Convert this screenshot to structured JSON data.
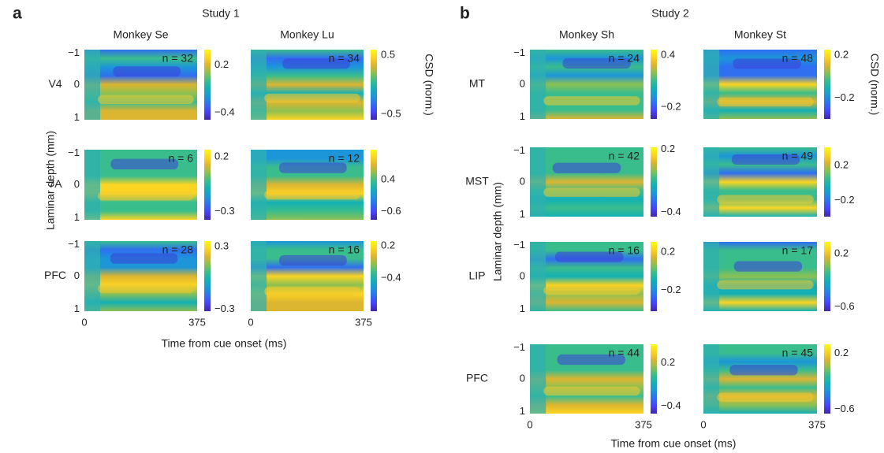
{
  "figure": {
    "panels": [
      {
        "label": "a",
        "title": "Study 1",
        "columns": [
          "Monkey Se",
          "Monkey Lu"
        ],
        "rows": [
          {
            "area": "V4",
            "cells": [
              {
                "n": "n = 32",
                "colorbar": [
                  "0.2",
                  "−0.4"
                ]
              },
              {
                "n": "n = 34",
                "colorbar": [
                  "0.5",
                  "−0.5"
                ]
              }
            ]
          },
          {
            "area": "7A",
            "cells": [
              {
                "n": "n = 6",
                "colorbar": [
                  "0.2",
                  "−0.3"
                ]
              },
              {
                "n": "n = 12",
                "colorbar": [
                  "0.4",
                  "−0.6"
                ]
              }
            ]
          },
          {
            "area": "PFC",
            "cells": [
              {
                "n": "n = 28",
                "colorbar": [
                  "0.3",
                  "−0.3"
                ]
              },
              {
                "n": "n = 16",
                "colorbar": [
                  "0.2",
                  "−0.4"
                ]
              }
            ]
          }
        ],
        "y_axis_label": "Laminar depth (mm)",
        "y_ticks": [
          "−1",
          "0",
          "1"
        ],
        "x_ticks": [
          "0",
          "375"
        ],
        "x_axis_label": "Time from cue onset (ms)",
        "colorbar_label": "CSD (norm.)"
      },
      {
        "label": "b",
        "title": "Study 2",
        "columns": [
          "Monkey Sh",
          "Monkey St"
        ],
        "rows": [
          {
            "area": "MT",
            "cells": [
              {
                "n": "n = 24",
                "colorbar": [
                  "0.4",
                  "−0.2"
                ]
              },
              {
                "n": "n = 48",
                "colorbar": [
                  "0.2",
                  "−0.2"
                ]
              }
            ]
          },
          {
            "area": "MST",
            "cells": [
              {
                "n": "n = 42",
                "colorbar": [
                  "0.2",
                  "−0.4"
                ]
              },
              {
                "n": "n = 49",
                "colorbar": [
                  "0.2",
                  "−0.2"
                ]
              }
            ]
          },
          {
            "area": "LIP",
            "cells": [
              {
                "n": "n = 16",
                "colorbar": [
                  "0.2",
                  "−0.2"
                ]
              },
              {
                "n": "n = 17",
                "colorbar": [
                  "0.2",
                  "−0.6"
                ]
              }
            ]
          },
          {
            "area": "PFC",
            "cells": [
              {
                "n": "n = 44",
                "colorbar": [
                  "0.2",
                  "−0.4"
                ]
              },
              {
                "n": "n = 45",
                "colorbar": [
                  "0.2",
                  "−0.6"
                ]
              }
            ]
          }
        ],
        "y_axis_label": "Laminar depth (mm)",
        "y_ticks": [
          "−1",
          "0",
          "1"
        ],
        "x_ticks": [
          "0",
          "375"
        ],
        "x_axis_label": "Time from cue onset (ms)",
        "colorbar_label": "CSD (norm.)"
      }
    ]
  }
}
